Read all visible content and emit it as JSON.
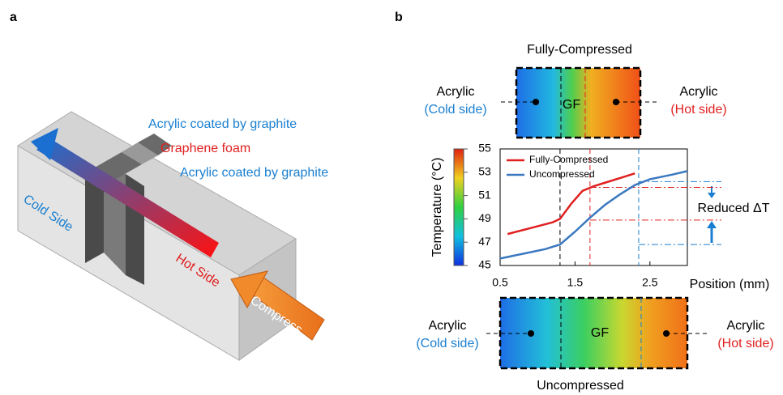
{
  "panel_a": {
    "label": "a",
    "top_layer": "Acrylic coated by graphite",
    "middle_layer": "Graphene foam",
    "bottom_layer": "Acrylic coated by graphite",
    "cold": "Cold Side",
    "hot": "Hot Side",
    "compress": "Compress"
  },
  "panel_b": {
    "label": "b",
    "top_title": "Fully-Compressed",
    "bottom_title": "Uncompressed",
    "gf_top": "GF",
    "gf_bottom": "GF",
    "top_left": [
      "Acrylic",
      "(Cold side)"
    ],
    "top_right": [
      "Acrylic",
      "(Hot side)"
    ],
    "bottom_left": [
      "Acrylic",
      "(Cold side)"
    ],
    "bottom_right": [
      "Acrylic",
      "(Hot side)"
    ],
    "annotation": "Reduced ΔT"
  },
  "chart_data": {
    "type": "line",
    "x_label": "Position (mm)",
    "y_label": "Temperature (°C)",
    "xlim": [
      0.5,
      3.0
    ],
    "ylim": [
      45,
      55
    ],
    "xticks": [
      0.5,
      1.5,
      2.5
    ],
    "yticks": [
      45,
      47,
      49,
      51,
      53,
      55
    ],
    "series": [
      {
        "name": "Fully-Compressed",
        "color": "#e02020",
        "x": [
          0.6,
          0.9,
          1.2,
          1.3,
          1.45,
          1.6,
          1.75,
          2.0,
          2.3
        ],
        "values": [
          47.7,
          48.2,
          48.7,
          49.0,
          50.3,
          51.4,
          51.8,
          52.3,
          52.9
        ]
      },
      {
        "name": "Uncompressed",
        "color": "#3a78c0",
        "x": [
          0.5,
          0.8,
          1.1,
          1.3,
          1.5,
          1.7,
          1.9,
          2.1,
          2.3,
          2.5,
          2.8,
          3.0
        ],
        "values": [
          45.6,
          46.0,
          46.4,
          46.8,
          47.9,
          49.1,
          50.2,
          51.1,
          51.9,
          52.4,
          52.8,
          53.1
        ]
      }
    ],
    "vlines": [
      {
        "x": 1.3,
        "color": "#000000"
      },
      {
        "x": 1.7,
        "color": "#e02020"
      },
      {
        "x": 2.35,
        "color": "#1a7fd0"
      }
    ],
    "hlines": [
      {
        "y": 51.7,
        "x": 1.7,
        "color": "#e02020"
      },
      {
        "y": 48.9,
        "x": 1.7,
        "color": "#e02020"
      },
      {
        "y": 52.2,
        "x": 2.35,
        "color": "#1a7fd0"
      },
      {
        "y": 46.8,
        "x": 2.35,
        "color": "#1a7fd0"
      }
    ]
  }
}
